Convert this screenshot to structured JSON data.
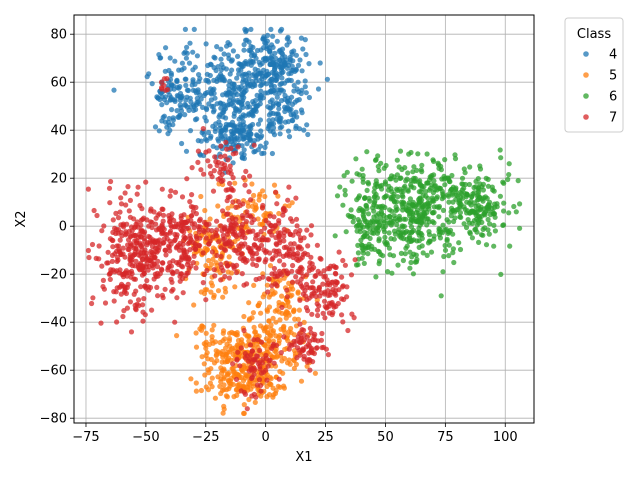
{
  "chart_data": {
    "type": "scatter",
    "xlabel": "X1",
    "ylabel": "X2",
    "xlim": [
      -80,
      112
    ],
    "ylim": [
      -82,
      88
    ],
    "xticks": [
      -75,
      -50,
      -25,
      0,
      25,
      50,
      75,
      100
    ],
    "yticks": [
      -80,
      -60,
      -40,
      -20,
      0,
      20,
      40,
      60,
      80
    ],
    "xtick_labels": [
      "−75",
      "−50",
      "−25",
      "0",
      "25",
      "50",
      "75",
      "100"
    ],
    "ytick_labels": [
      "−80",
      "−60",
      "−40",
      "−20",
      "0",
      "20",
      "40",
      "60",
      "80"
    ],
    "grid": true,
    "legend": {
      "title": "Class",
      "placement": "outside-top-right"
    },
    "series": [
      {
        "name": "4",
        "color": "#1f77b4",
        "clusters": [
          {
            "cx": -12,
            "cy": 57,
            "sx": 14,
            "sy": 11,
            "n": 420
          },
          {
            "cx": 2,
            "cy": 68,
            "sx": 6,
            "sy": 6,
            "n": 110
          },
          {
            "cx": -12,
            "cy": 37,
            "sx": 7,
            "sy": 5,
            "n": 120
          },
          {
            "cx": 8,
            "cy": 48,
            "sx": 5,
            "sy": 5,
            "n": 60
          },
          {
            "cx": -38,
            "cy": 55,
            "sx": 4,
            "sy": 6,
            "n": 70
          }
        ]
      },
      {
        "name": "5",
        "color": "#ff7f0e",
        "clusters": [
          {
            "cx": -8,
            "cy": -55,
            "sx": 11,
            "sy": 9,
            "n": 310
          },
          {
            "cx": -8,
            "cy": -67,
            "sx": 6,
            "sy": 3,
            "n": 60
          },
          {
            "cx": 6,
            "cy": -42,
            "sx": 6,
            "sy": 5,
            "n": 60
          },
          {
            "cx": -22,
            "cy": -10,
            "sx": 6,
            "sy": 9,
            "n": 110
          },
          {
            "cx": -5,
            "cy": 6,
            "sx": 7,
            "sy": 6,
            "n": 70
          },
          {
            "cx": 5,
            "cy": -28,
            "sx": 5,
            "sy": 5,
            "n": 50
          }
        ]
      },
      {
        "name": "6",
        "color": "#2ca02c",
        "clusters": [
          {
            "cx": 60,
            "cy": 5,
            "sx": 12,
            "sy": 11,
            "n": 420
          },
          {
            "cx": 90,
            "cy": 10,
            "sx": 6,
            "sy": 8,
            "n": 160
          },
          {
            "cx": 72,
            "cy": 15,
            "sx": 6,
            "sy": 5,
            "n": 70
          },
          {
            "cx": 42,
            "cy": -3,
            "sx": 4,
            "sy": 7,
            "n": 60
          }
        ]
      },
      {
        "name": "7",
        "color": "#d62728",
        "clusters": [
          {
            "cx": -55,
            "cy": -12,
            "sx": 8,
            "sy": 11,
            "n": 330
          },
          {
            "cx": -35,
            "cy": -5,
            "sx": 6,
            "sy": 10,
            "n": 170
          },
          {
            "cx": -12,
            "cy": -5,
            "sx": 6,
            "sy": 9,
            "n": 150
          },
          {
            "cx": 8,
            "cy": -10,
            "sx": 6,
            "sy": 9,
            "n": 150
          },
          {
            "cx": 25,
            "cy": -26,
            "sx": 5,
            "sy": 6,
            "n": 110
          },
          {
            "cx": 18,
            "cy": -50,
            "sx": 4,
            "sy": 4,
            "n": 60
          },
          {
            "cx": -5,
            "cy": -58,
            "sx": 5,
            "sy": 6,
            "n": 70
          },
          {
            "cx": -18,
            "cy": 25,
            "sx": 6,
            "sy": 5,
            "n": 50
          },
          {
            "cx": -42,
            "cy": 60,
            "sx": 2,
            "sy": 2,
            "n": 8
          }
        ]
      }
    ]
  }
}
